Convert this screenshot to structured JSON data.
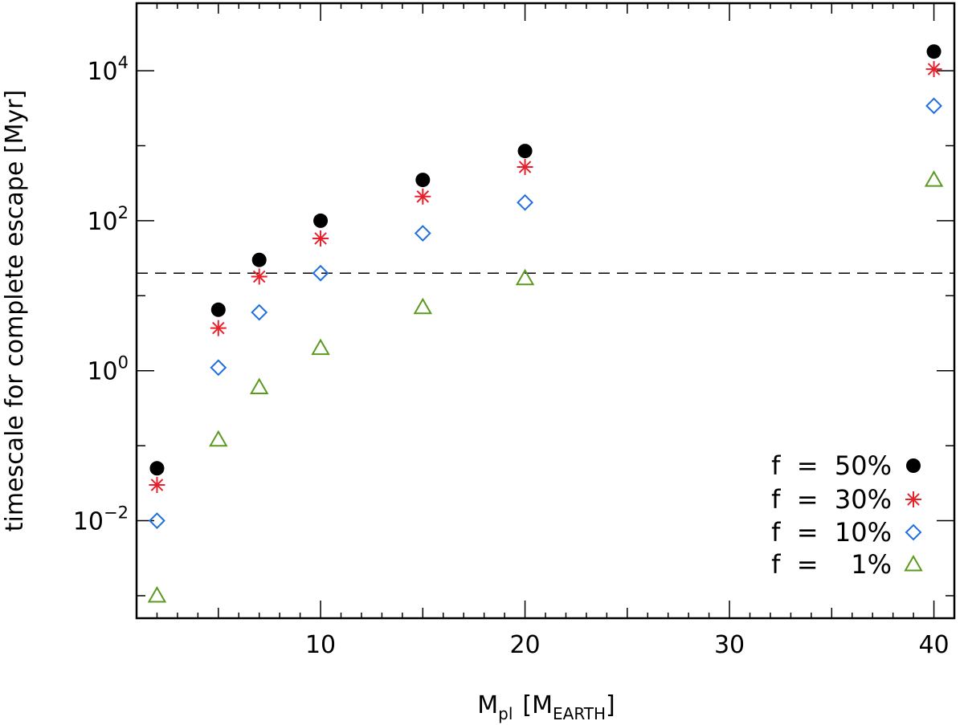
{
  "chart_data": {
    "type": "scatter",
    "xlabel": {
      "main": "M",
      "sub": "pl",
      "unit_main": "M",
      "unit_sub": "EARTH"
    },
    "ylabel": "timescale for complete escape [Myr]",
    "xlim": [
      1,
      41
    ],
    "ylim_log10": [
      -3.3,
      4.9
    ],
    "x_ticks": [
      10,
      20,
      30,
      40
    ],
    "y_ticks": [
      {
        "exp": -2,
        "base": "10",
        "sup": "−2"
      },
      {
        "exp": 0,
        "base": "10",
        "sup": "0"
      },
      {
        "exp": 2,
        "base": "10",
        "sup": "2"
      },
      {
        "exp": 4,
        "base": "10",
        "sup": "4"
      }
    ],
    "reference_line_y": 20,
    "legend_position": "bottom-right",
    "series": [
      {
        "name": "f = 50%",
        "label": "f  =  50%",
        "marker": "filled-circle",
        "color": "#000000",
        "points": [
          [
            2,
            0.05
          ],
          [
            5,
            6.5
          ],
          [
            7,
            30
          ],
          [
            10,
            100
          ],
          [
            15,
            350
          ],
          [
            20,
            850
          ],
          [
            40,
            18000
          ]
        ]
      },
      {
        "name": "f = 30%",
        "label": "f  =  30%",
        "marker": "asterisk",
        "color": "#e8202a",
        "points": [
          [
            2,
            0.03
          ],
          [
            5,
            3.7
          ],
          [
            7,
            18
          ],
          [
            10,
            58
          ],
          [
            15,
            210
          ],
          [
            20,
            520
          ],
          [
            40,
            10500
          ]
        ]
      },
      {
        "name": "f = 10%",
        "label": "f  =  10%",
        "marker": "diamond",
        "color": "#1f6fe0",
        "points": [
          [
            2,
            0.01
          ],
          [
            5,
            1.1
          ],
          [
            7,
            6
          ],
          [
            10,
            20
          ],
          [
            15,
            68
          ],
          [
            20,
            175
          ],
          [
            40,
            3400
          ]
        ]
      },
      {
        "name": "f = 1%",
        "label": "f  =    1%",
        "marker": "triangle",
        "color": "#5a9a1e",
        "points": [
          [
            2,
            0.001
          ],
          [
            5,
            0.12
          ],
          [
            7,
            0.6
          ],
          [
            10,
            2
          ],
          [
            15,
            7
          ],
          [
            20,
            17
          ],
          [
            40,
            350
          ]
        ]
      }
    ]
  }
}
